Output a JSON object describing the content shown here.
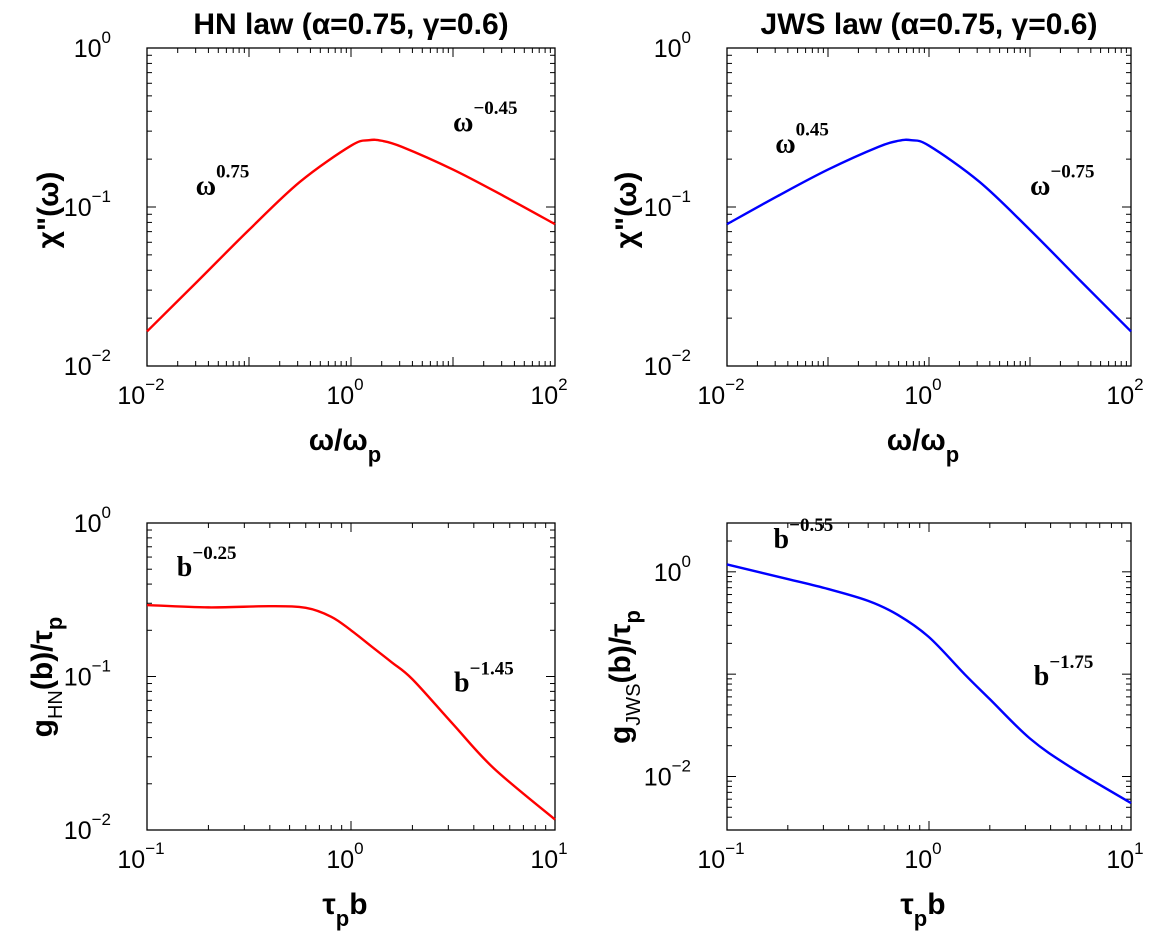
{
  "chart_data": [
    {
      "type": "line",
      "title": "HN law (α=0.75, γ=0.6)",
      "xlabel": "ω/ω",
      "xlabel_sub": "p",
      "ylabel": "χ\"(ω)",
      "xscale": "log",
      "yscale": "log",
      "xlim": [
        0.01,
        100
      ],
      "ylim": [
        0.01,
        1
      ],
      "xticks": [
        {
          "base": "10",
          "exp": "−2"
        },
        {
          "base": "10",
          "exp": "0"
        },
        {
          "base": "10",
          "exp": "2"
        }
      ],
      "yticks": [
        {
          "base": "10",
          "exp": "−2"
        },
        {
          "base": "10",
          "exp": "−1"
        },
        {
          "base": "10",
          "exp": "0"
        }
      ],
      "color": "#ff0000",
      "series": [
        {
          "x": [
            0.01,
            0.0316,
            0.1,
            0.316,
            1.0,
            1.5,
            2.0,
            3.16,
            10,
            31.6,
            100
          ],
          "y": [
            0.0165,
            0.0343,
            0.0718,
            0.144,
            0.243,
            0.263,
            0.261,
            0.239,
            0.172,
            0.117,
            0.078
          ]
        }
      ],
      "annotations": [
        {
          "base": "ω",
          "exp": "0.75",
          "x": 0.03,
          "y": 0.12
        },
        {
          "base": "ω",
          "exp": "−0.45",
          "x": 10,
          "y": 0.3
        }
      ]
    },
    {
      "type": "line",
      "title": "JWS law (α=0.75, γ=0.6)",
      "xlabel": "ω/ω",
      "xlabel_sub": "p",
      "ylabel": "χ\"(ω)",
      "xscale": "log",
      "yscale": "log",
      "xlim": [
        0.01,
        100
      ],
      "ylim": [
        0.01,
        1
      ],
      "xticks": [
        {
          "base": "10",
          "exp": "−2"
        },
        {
          "base": "10",
          "exp": "0"
        },
        {
          "base": "10",
          "exp": "2"
        }
      ],
      "yticks": [
        {
          "base": "10",
          "exp": "−2"
        },
        {
          "base": "10",
          "exp": "−1"
        },
        {
          "base": "10",
          "exp": "0"
        }
      ],
      "color": "#0000ff",
      "series": [
        {
          "x": [
            0.01,
            0.0316,
            0.1,
            0.316,
            0.5,
            0.667,
            1.0,
            3.16,
            10,
            31.6,
            100
          ],
          "y": [
            0.078,
            0.117,
            0.172,
            0.239,
            0.261,
            0.263,
            0.243,
            0.144,
            0.0718,
            0.0343,
            0.0165
          ]
        }
      ],
      "annotations": [
        {
          "base": "ω",
          "exp": "0.45",
          "x": 0.03,
          "y": 0.22
        },
        {
          "base": "ω",
          "exp": "−0.75",
          "x": 10,
          "y": 0.12
        }
      ]
    },
    {
      "type": "line",
      "title": "",
      "xlabel": "τ",
      "xlabel_sub": "p",
      "xlabel_tail": "b",
      "ylabel": "g",
      "ylabel_sub": "HN",
      "ylabel_tail": "(b)/τ",
      "ylabel_tail_sub": "p",
      "xscale": "log",
      "yscale": "log",
      "xlim": [
        0.1,
        10
      ],
      "ylim": [
        0.01,
        1
      ],
      "xticks": [
        {
          "base": "10",
          "exp": "−1"
        },
        {
          "base": "10",
          "exp": "0"
        },
        {
          "base": "10",
          "exp": "1"
        }
      ],
      "yticks": [
        {
          "base": "10",
          "exp": "−2"
        },
        {
          "base": "10",
          "exp": "−1"
        },
        {
          "base": "10",
          "exp": "0"
        }
      ],
      "color": "#ff0000",
      "series": [
        {
          "x": [
            0.1,
            0.2,
            0.4,
            0.6,
            0.8,
            1.0,
            1.26,
            1.58,
            2.0,
            3.16,
            5.0,
            10
          ],
          "y": [
            0.292,
            0.282,
            0.287,
            0.28,
            0.245,
            0.2,
            0.157,
            0.124,
            0.096,
            0.049,
            0.0253,
            0.0117
          ]
        }
      ],
      "annotations": [
        {
          "base": "b",
          "exp": "−0.25",
          "x": 0.14,
          "y": 0.45
        },
        {
          "base": "b",
          "exp": "−1.45",
          "x": 3.2,
          "y": 0.08
        }
      ]
    },
    {
      "type": "line",
      "title": "",
      "xlabel": "τ",
      "xlabel_sub": "p",
      "xlabel_tail": "b",
      "ylabel": "g",
      "ylabel_sub": "JWS",
      "ylabel_tail": "(b)/τ",
      "ylabel_tail_sub": "p",
      "xscale": "log",
      "yscale": "log",
      "xlim": [
        0.1,
        10
      ],
      "ylim": [
        0.003,
        3
      ],
      "xticks": [
        {
          "base": "10",
          "exp": "−1"
        },
        {
          "base": "10",
          "exp": "0"
        },
        {
          "base": "10",
          "exp": "1"
        }
      ],
      "yticks": [
        {
          "base": "10",
          "exp": "−2"
        },
        {
          "base": "10",
          "exp": "0"
        }
      ],
      "color": "#0000ff",
      "series": [
        {
          "x": [
            0.1,
            0.2,
            0.316,
            0.5,
            0.7,
            1.0,
            1.5,
            2.0,
            3.16,
            5.0,
            10
          ],
          "y": [
            1.18,
            0.85,
            0.68,
            0.52,
            0.38,
            0.23,
            0.1,
            0.057,
            0.0235,
            0.0124,
            0.0055
          ]
        }
      ],
      "annotations": [
        {
          "base": "b",
          "exp": "−0.55",
          "x": 0.17,
          "y": 1.7
        },
        {
          "base": "b",
          "exp": "−1.75",
          "x": 3.3,
          "y": 0.078
        }
      ]
    }
  ]
}
